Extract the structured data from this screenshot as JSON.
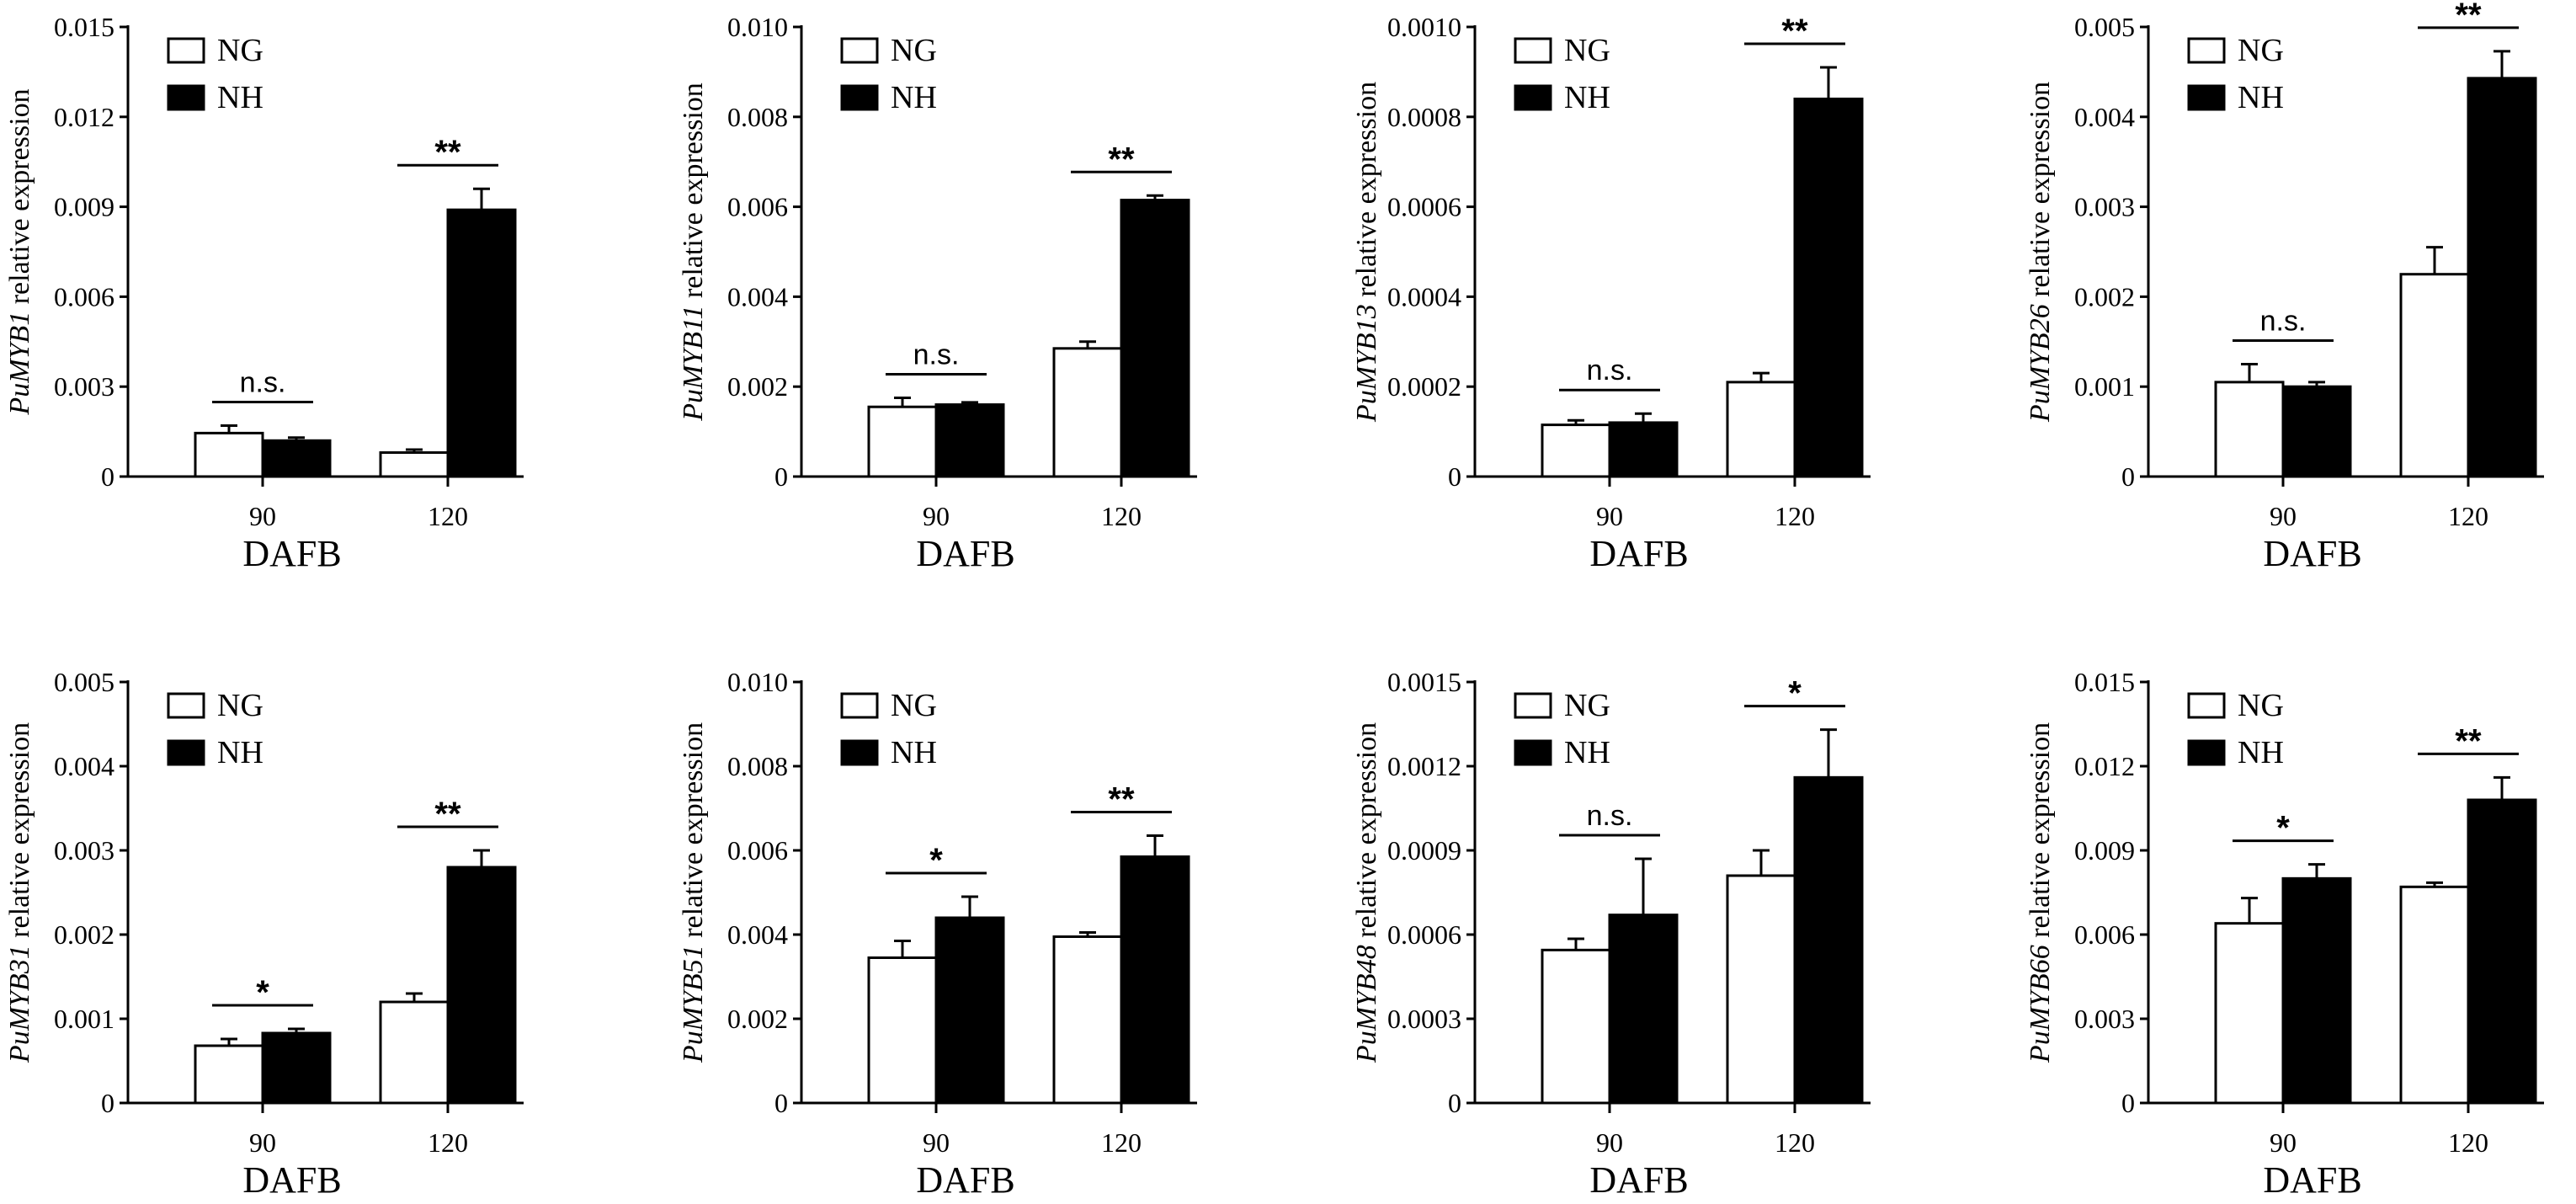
{
  "chart_data": [
    {
      "type": "bar",
      "gene": "PuMYB1",
      "ylabel_suffix": " relative expression",
      "xlabel": "DAFB",
      "categories": [
        "90",
        "120"
      ],
      "ylim": [
        0,
        0.015
      ],
      "ytick_values": [
        0,
        0.003,
        0.006,
        0.009,
        0.012,
        0.015
      ],
      "ytick_labels": [
        "0",
        "0.003",
        "0.006",
        "0.009",
        "0.012",
        "0.015"
      ],
      "series": [
        {
          "name": "NG",
          "values": [
            0.00145,
            0.0008
          ],
          "errors": [
            0.00025,
            0.0001
          ]
        },
        {
          "name": "NH",
          "values": [
            0.0012,
            0.0089
          ],
          "errors": [
            0.0001,
            0.0007
          ]
        }
      ],
      "significance": [
        "n.s.",
        "**"
      ]
    },
    {
      "type": "bar",
      "gene": "PuMYB11",
      "ylabel_suffix": " relative expression",
      "xlabel": "DAFB",
      "categories": [
        "90",
        "120"
      ],
      "ylim": [
        0,
        0.01
      ],
      "ytick_values": [
        0,
        0.002,
        0.004,
        0.006,
        0.008,
        0.01
      ],
      "ytick_labels": [
        "0",
        "0.002",
        "0.004",
        "0.006",
        "0.008",
        "0.010"
      ],
      "series": [
        {
          "name": "NG",
          "values": [
            0.00155,
            0.00285
          ],
          "errors": [
            0.0002,
            0.00015
          ]
        },
        {
          "name": "NH",
          "values": [
            0.0016,
            0.00615
          ],
          "errors": [
            5e-05,
            0.0001
          ]
        }
      ],
      "significance": [
        "n.s.",
        "**"
      ]
    },
    {
      "type": "bar",
      "gene": "PuMYB13",
      "ylabel_suffix": " relative expression",
      "xlabel": "DAFB",
      "categories": [
        "90",
        "120"
      ],
      "ylim": [
        0,
        0.001
      ],
      "ytick_values": [
        0,
        0.0002,
        0.0004,
        0.0006,
        0.0008,
        0.001
      ],
      "ytick_labels": [
        "0",
        "0.0002",
        "0.0004",
        "0.0006",
        "0.0008",
        "0.0010"
      ],
      "series": [
        {
          "name": "NG",
          "values": [
            0.000115,
            0.00021
          ],
          "errors": [
            1e-05,
            2e-05
          ]
        },
        {
          "name": "NH",
          "values": [
            0.00012,
            0.00084
          ],
          "errors": [
            2e-05,
            7e-05
          ]
        }
      ],
      "significance": [
        "n.s.",
        "**"
      ]
    },
    {
      "type": "bar",
      "gene": "PuMYB26",
      "ylabel_suffix": " relative expression",
      "xlabel": "DAFB",
      "categories": [
        "90",
        "120"
      ],
      "ylim": [
        0,
        0.005
      ],
      "ytick_values": [
        0,
        0.001,
        0.002,
        0.003,
        0.004,
        0.005
      ],
      "ytick_labels": [
        "0",
        "0.001",
        "0.002",
        "0.003",
        "0.004",
        "0.005"
      ],
      "series": [
        {
          "name": "NG",
          "values": [
            0.00105,
            0.00225
          ],
          "errors": [
            0.0002,
            0.0003
          ]
        },
        {
          "name": "NH",
          "values": [
            0.001,
            0.00443
          ],
          "errors": [
            5e-05,
            0.0003
          ]
        }
      ],
      "significance": [
        "n.s.",
        "**"
      ]
    },
    {
      "type": "bar",
      "gene": "PuMYB31",
      "ylabel_suffix": " relative expression",
      "xlabel": "DAFB",
      "categories": [
        "90",
        "120"
      ],
      "ylim": [
        0,
        0.005
      ],
      "ytick_values": [
        0,
        0.001,
        0.002,
        0.003,
        0.004,
        0.005
      ],
      "ytick_labels": [
        "0",
        "0.001",
        "0.002",
        "0.003",
        "0.004",
        "0.005"
      ],
      "series": [
        {
          "name": "NG",
          "values": [
            0.00068,
            0.0012
          ],
          "errors": [
            8e-05,
            0.0001
          ]
        },
        {
          "name": "NH",
          "values": [
            0.00083,
            0.0028
          ],
          "errors": [
            5e-05,
            0.0002
          ]
        }
      ],
      "significance": [
        "*",
        "**"
      ]
    },
    {
      "type": "bar",
      "gene": "PuMYB51",
      "ylabel_suffix": " relative expression",
      "xlabel": "DAFB",
      "categories": [
        "90",
        "120"
      ],
      "ylim": [
        0,
        0.01
      ],
      "ytick_values": [
        0,
        0.002,
        0.004,
        0.006,
        0.008,
        0.01
      ],
      "ytick_labels": [
        "0",
        "0.002",
        "0.004",
        "0.006",
        "0.008",
        "0.010"
      ],
      "series": [
        {
          "name": "NG",
          "values": [
            0.00345,
            0.00395
          ],
          "errors": [
            0.0004,
            0.0001
          ]
        },
        {
          "name": "NH",
          "values": [
            0.0044,
            0.00585
          ],
          "errors": [
            0.0005,
            0.0005
          ]
        }
      ],
      "significance": [
        "*",
        "**"
      ]
    },
    {
      "type": "bar",
      "gene": "PuMYB48",
      "ylabel_suffix": " relative expression",
      "xlabel": "DAFB",
      "categories": [
        "90",
        "120"
      ],
      "ylim": [
        0,
        0.0015
      ],
      "ytick_values": [
        0,
        0.0003,
        0.0006,
        0.0009,
        0.0012,
        0.0015
      ],
      "ytick_labels": [
        "0",
        "0.0003",
        "0.0006",
        "0.0009",
        "0.0012",
        "0.0015"
      ],
      "series": [
        {
          "name": "NG",
          "values": [
            0.000545,
            0.00081
          ],
          "errors": [
            4e-05,
            9e-05
          ]
        },
        {
          "name": "NH",
          "values": [
            0.00067,
            0.00116
          ],
          "errors": [
            0.0002,
            0.00017
          ]
        }
      ],
      "significance": [
        "n.s.",
        "*"
      ]
    },
    {
      "type": "bar",
      "gene": "PuMYB66",
      "ylabel_suffix": " relative expression",
      "xlabel": "DAFB",
      "categories": [
        "90",
        "120"
      ],
      "ylim": [
        0,
        0.015
      ],
      "ytick_values": [
        0,
        0.003,
        0.006,
        0.009,
        0.012,
        0.015
      ],
      "ytick_labels": [
        "0",
        "0.003",
        "0.006",
        "0.009",
        "0.012",
        "0.015"
      ],
      "series": [
        {
          "name": "NG",
          "values": [
            0.0064,
            0.0077
          ],
          "errors": [
            0.0009,
            0.00015
          ]
        },
        {
          "name": "NH",
          "values": [
            0.008,
            0.0108
          ],
          "errors": [
            0.0005,
            0.0008
          ]
        }
      ],
      "significance": [
        "*",
        "**"
      ]
    }
  ]
}
